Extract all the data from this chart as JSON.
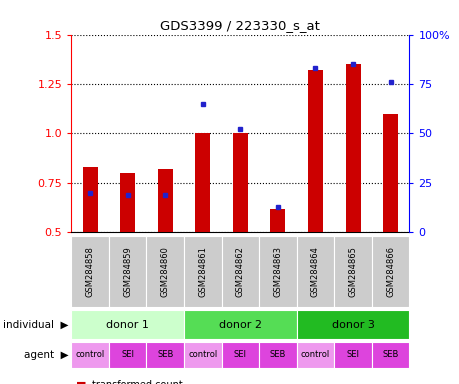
{
  "title": "GDS3399 / 223330_s_at",
  "samples": [
    "GSM284858",
    "GSM284859",
    "GSM284860",
    "GSM284861",
    "GSM284862",
    "GSM284863",
    "GSM284864",
    "GSM284865",
    "GSM284866"
  ],
  "transformed_count": [
    0.83,
    0.8,
    0.82,
    1.0,
    1.0,
    0.62,
    1.32,
    1.35,
    1.1
  ],
  "percentile_rank_pct": [
    20,
    19,
    19,
    65,
    52,
    13,
    83,
    85,
    76
  ],
  "ylim_left": [
    0.5,
    1.5
  ],
  "ylim_right": [
    0,
    100
  ],
  "yticks_left": [
    0.5,
    0.75,
    1.0,
    1.25,
    1.5
  ],
  "yticks_right": [
    0,
    25,
    50,
    75,
    100
  ],
  "bar_color": "#cc0000",
  "dot_color": "#2222cc",
  "indiv_groups": [
    [
      0,
      3,
      "donor 1",
      "#ccffcc"
    ],
    [
      3,
      6,
      "donor 2",
      "#55dd55"
    ],
    [
      6,
      9,
      "donor 3",
      "#22bb22"
    ]
  ],
  "agent_labels": [
    "control",
    "SEI",
    "SEB",
    "control",
    "SEI",
    "SEB",
    "control",
    "SEI",
    "SEB"
  ],
  "agent_color_control": "#ee99ee",
  "agent_color_SEI": "#dd44dd",
  "agent_color_SEB": "#dd44dd",
  "background_color": "#ffffff",
  "sample_bg_color": "#cccccc"
}
